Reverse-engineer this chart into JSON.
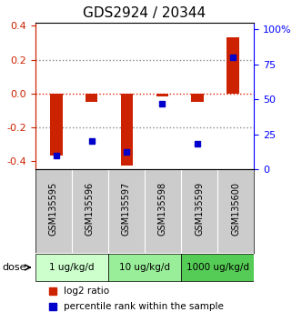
{
  "title": "GDS2924 / 20344",
  "samples": [
    "GSM135595",
    "GSM135596",
    "GSM135597",
    "GSM135598",
    "GSM135599",
    "GSM135600"
  ],
  "log2_ratio": [
    -0.37,
    -0.05,
    -0.43,
    -0.02,
    -0.05,
    0.33
  ],
  "percentile_rank": [
    10,
    20,
    12,
    47,
    18,
    80
  ],
  "doses": [
    {
      "label": "1 ug/kg/d",
      "samples": [
        0,
        1
      ],
      "color": "#ccffcc"
    },
    {
      "label": "10 ug/kg/d",
      "samples": [
        2,
        3
      ],
      "color": "#99ee99"
    },
    {
      "label": "1000 ug/kg/d",
      "samples": [
        4,
        5
      ],
      "color": "#55cc55"
    }
  ],
  "ylim_left": [
    -0.45,
    0.42
  ],
  "ylim_right": [
    0,
    105
  ],
  "yticks_left": [
    -0.4,
    -0.2,
    0.0,
    0.2,
    0.4
  ],
  "yticks_right": [
    0,
    25,
    50,
    75,
    100
  ],
  "yticklabels_right": [
    "0",
    "25",
    "50",
    "75",
    "100%"
  ],
  "bar_color_red": "#cc2200",
  "bar_color_blue": "#0000cc",
  "hline_color_red": "#dd2200",
  "hline_color_blue": "#aaaaff",
  "grid_color": "#888888",
  "bg_color": "#ffffff",
  "legend_red": "log2 ratio",
  "legend_blue": "percentile rank within the sample",
  "dose_label": "dose"
}
